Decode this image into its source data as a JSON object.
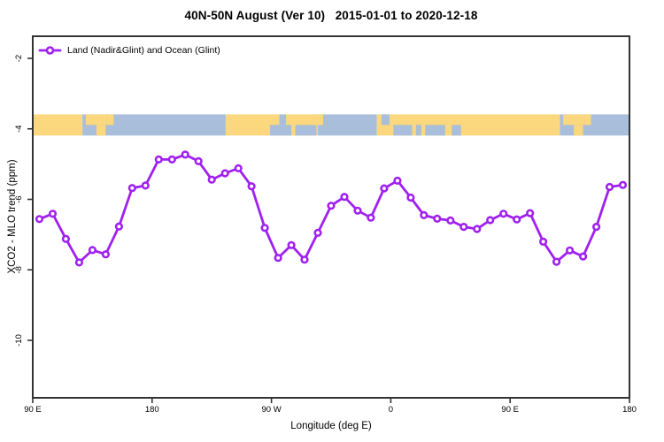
{
  "header": {
    "title": "40N-50N August (Ver 10)   2015-01-01 to 2020-12-18"
  },
  "legend": {
    "label": "Land (Nadir&Glint) and Ocean (Glint)",
    "marker": "open-circle-on-line"
  },
  "chart_data": {
    "type": "line",
    "title": "40N-50N August (Ver 10)   2015-01-01 to 2020-12-18",
    "xlabel": "Longitude (deg E)",
    "ylabel": "XCO2 - MLO trend (ppm)",
    "xlim": [
      90,
      540
    ],
    "ylim": [
      -11.2,
      -1.3
    ],
    "grid": false,
    "legend_position": "top-left-inside",
    "xticks": [
      {
        "pos": 90,
        "label": "90 E"
      },
      {
        "pos": 180,
        "label": "180"
      },
      {
        "pos": 270,
        "label": "90 W"
      },
      {
        "pos": 360,
        "label": "0"
      },
      {
        "pos": 450,
        "label": "90 E"
      },
      {
        "pos": 540,
        "label": "180"
      }
    ],
    "yticks": [
      {
        "pos": -2,
        "label": "-2"
      },
      {
        "pos": -4,
        "label": "-4"
      },
      {
        "pos": -6,
        "label": "-6"
      },
      {
        "pos": -8,
        "label": "-8"
      },
      {
        "pos": -10,
        "label": "-10"
      }
    ],
    "series": [
      {
        "name": "Land (Nadir&Glint) and Ocean (Glint)",
        "color": "#A020F0",
        "marker": "open-circle",
        "x": [
          95,
          105,
          115,
          125,
          135,
          145,
          155,
          165,
          175,
          185,
          195,
          205,
          215,
          225,
          235,
          245,
          255,
          265,
          275,
          285,
          295,
          305,
          315,
          325,
          335,
          345,
          355,
          365,
          375,
          385,
          395,
          405,
          415,
          425,
          435,
          445,
          455,
          465,
          475,
          485,
          495,
          505,
          515,
          525,
          535
        ],
        "values": [
          -6.56,
          -6.41,
          -7.12,
          -7.79,
          -7.44,
          -7.56,
          -6.77,
          -5.68,
          -5.61,
          -4.87,
          -4.87,
          -4.73,
          -4.92,
          -5.44,
          -5.26,
          -5.12,
          -5.63,
          -6.81,
          -7.66,
          -7.3,
          -7.71,
          -6.95,
          -6.18,
          -5.93,
          -6.32,
          -6.52,
          -5.69,
          -5.47,
          -5.95,
          -6.45,
          -6.55,
          -6.6,
          -6.78,
          -6.84,
          -6.59,
          -6.41,
          -6.57,
          -6.39,
          -7.2,
          -7.77,
          -7.45,
          -7.62,
          -6.78,
          -5.65,
          -5.59
        ]
      }
    ],
    "map_band": {
      "description": "land/ocean strip for 40N-50N along longitude",
      "land_color": "#FBD77D",
      "ocean_color": "#A8BEDB",
      "value_top": -3.59,
      "value_bottom": -4.19,
      "base_segments": [
        {
          "from": 90,
          "to": 127.5,
          "type": "land"
        },
        {
          "from": 127.5,
          "to": 235.5,
          "type": "ocean"
        },
        {
          "from": 235.5,
          "to": 305,
          "type": "land"
        },
        {
          "from": 305,
          "to": 349.5,
          "type": "ocean"
        },
        {
          "from": 349.5,
          "to": 487.5,
          "type": "land"
        },
        {
          "from": 487.5,
          "to": 540,
          "type": "ocean"
        }
      ],
      "detail_segments": [
        {
          "from": 130,
          "to": 146,
          "half": "top",
          "type": "land"
        },
        {
          "from": 138,
          "to": 145,
          "half": "bottom",
          "type": "land"
        },
        {
          "from": 146,
          "to": 151,
          "half": "top",
          "type": "land"
        },
        {
          "from": 269,
          "to": 285,
          "half": "bottom",
          "type": "ocean"
        },
        {
          "from": 276,
          "to": 281,
          "half": "top",
          "type": "ocean"
        },
        {
          "from": 288,
          "to": 304,
          "half": "bottom",
          "type": "ocean"
        },
        {
          "from": 301,
          "to": 309,
          "half": "top",
          "type": "land"
        },
        {
          "from": 353,
          "to": 359,
          "half": "top",
          "type": "ocean"
        },
        {
          "from": 362,
          "to": 376,
          "half": "bottom",
          "type": "ocean"
        },
        {
          "from": 379,
          "to": 383,
          "half": "bottom",
          "type": "ocean"
        },
        {
          "from": 386,
          "to": 401,
          "half": "bottom",
          "type": "ocean"
        },
        {
          "from": 406,
          "to": 413,
          "half": "bottom",
          "type": "ocean"
        },
        {
          "from": 490,
          "to": 506,
          "half": "top",
          "type": "land"
        },
        {
          "from": 498,
          "to": 505,
          "half": "bottom",
          "type": "land"
        },
        {
          "from": 506,
          "to": 511,
          "half": "top",
          "type": "land"
        }
      ]
    }
  },
  "colors": {
    "line": "#A020F0",
    "land": "#FBD77D",
    "ocean": "#A8BEDB",
    "axis": "#333333",
    "text": "#000000",
    "background": "#ffffff"
  }
}
